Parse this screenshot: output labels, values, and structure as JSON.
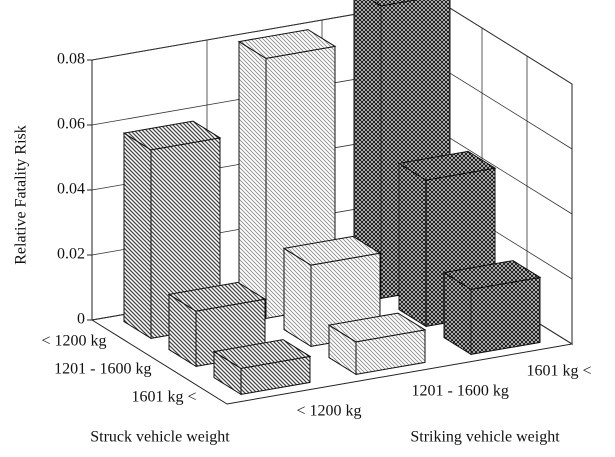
{
  "chart_data": {
    "type": "bar3d",
    "zlabel": "Relative  Fatality  Risk",
    "struck_label": "Struck vehicle weight",
    "striking_label": "Striking vehicle weight",
    "struck_categories": [
      "< 1200  kg",
      "1201 - 1600 kg",
      "1601 kg <"
    ],
    "striking_categories": [
      "< 1200 kg",
      "1201 - 1600 kg",
      "1601 kg <"
    ],
    "series": [
      {
        "color": "#444444",
        "values": [
          0.058,
          0.017,
          0.008
        ]
      },
      {
        "color": "#888888",
        "values": [
          0.08,
          0.025,
          0.01
        ]
      },
      {
        "color": "#222222",
        "values": [
          0.09,
          0.045,
          0.02
        ]
      }
    ],
    "zlim": [
      0,
      0.08
    ],
    "zticks": [
      0,
      0.02,
      0.04,
      0.06,
      0.08
    ],
    "grid": true
  }
}
